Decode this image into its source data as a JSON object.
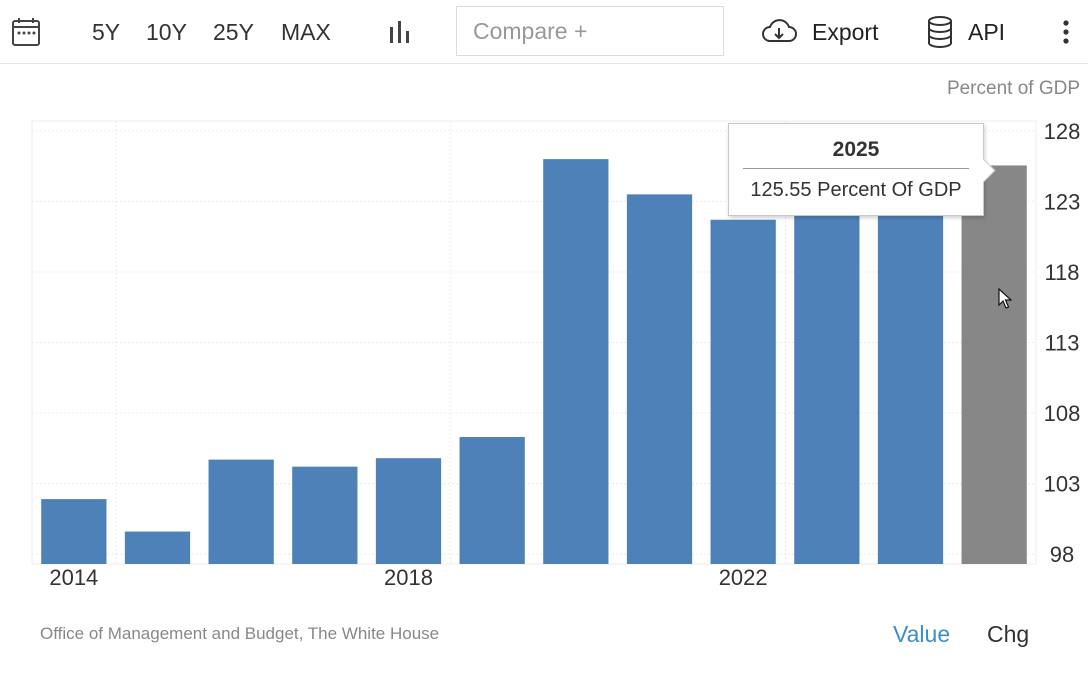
{
  "toolbar": {
    "ranges": [
      "5Y",
      "10Y",
      "25Y",
      "MAX"
    ],
    "compare_placeholder": "Compare +",
    "export_label": "Export",
    "api_label": "API"
  },
  "unit_label": "Percent of GDP",
  "tooltip": {
    "year": "2025",
    "value_text": "125.55 Percent Of GDP"
  },
  "source": "Office of Management and Budget, The White House",
  "tabs": {
    "value": "Value",
    "chg": "Chg"
  },
  "colors": {
    "bar": "#4f81b9",
    "highlight_bar": "#878787",
    "accent": "#3a8fc9"
  },
  "chart_data": {
    "type": "bar",
    "x": [
      2014,
      2015,
      2016,
      2017,
      2018,
      2019,
      2020,
      2021,
      2022,
      2023,
      2024,
      2025
    ],
    "values": [
      101.9,
      99.6,
      104.7,
      104.2,
      104.8,
      106.3,
      126.0,
      123.5,
      121.7,
      122.7,
      123.2,
      125.55
    ],
    "highlighted": 2025,
    "y_ticks": [
      98,
      103,
      108,
      113,
      118,
      123,
      128
    ],
    "x_ticks": [
      2014,
      2018,
      2022
    ],
    "ylim": [
      97.3,
      128.7
    ],
    "ylabel": "Percent of GDP",
    "grid": true
  }
}
